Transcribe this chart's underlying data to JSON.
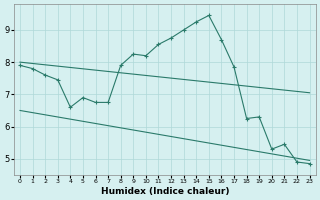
{
  "xlabel": "Humidex (Indice chaleur)",
  "bg_color": "#d6f0f0",
  "grid_color": "#afd8d8",
  "line_color": "#2a7a6a",
  "xlim": [
    -0.5,
    23.5
  ],
  "ylim": [
    4.5,
    9.8
  ],
  "xticks": [
    0,
    1,
    2,
    3,
    4,
    5,
    6,
    7,
    8,
    9,
    10,
    11,
    12,
    13,
    14,
    15,
    16,
    17,
    18,
    19,
    20,
    21,
    22,
    23
  ],
  "yticks": [
    5,
    6,
    7,
    8,
    9
  ],
  "line1_x": [
    0,
    1,
    2,
    3,
    4,
    5,
    6,
    7,
    8,
    9,
    10,
    11,
    12,
    13,
    14,
    15,
    16,
    17,
    18,
    19,
    20,
    21,
    22,
    23
  ],
  "line1_y": [
    7.9,
    7.8,
    7.6,
    7.45,
    6.6,
    6.9,
    6.75,
    6.75,
    7.9,
    8.25,
    8.2,
    8.55,
    8.75,
    9.0,
    9.25,
    9.45,
    8.7,
    7.85,
    6.25,
    6.3,
    5.3,
    5.45,
    4.9,
    4.85
  ],
  "line2_x": [
    0,
    23
  ],
  "line2_y": [
    8.0,
    7.05
  ],
  "line3_x": [
    0,
    23
  ],
  "line3_y": [
    6.5,
    4.95
  ]
}
